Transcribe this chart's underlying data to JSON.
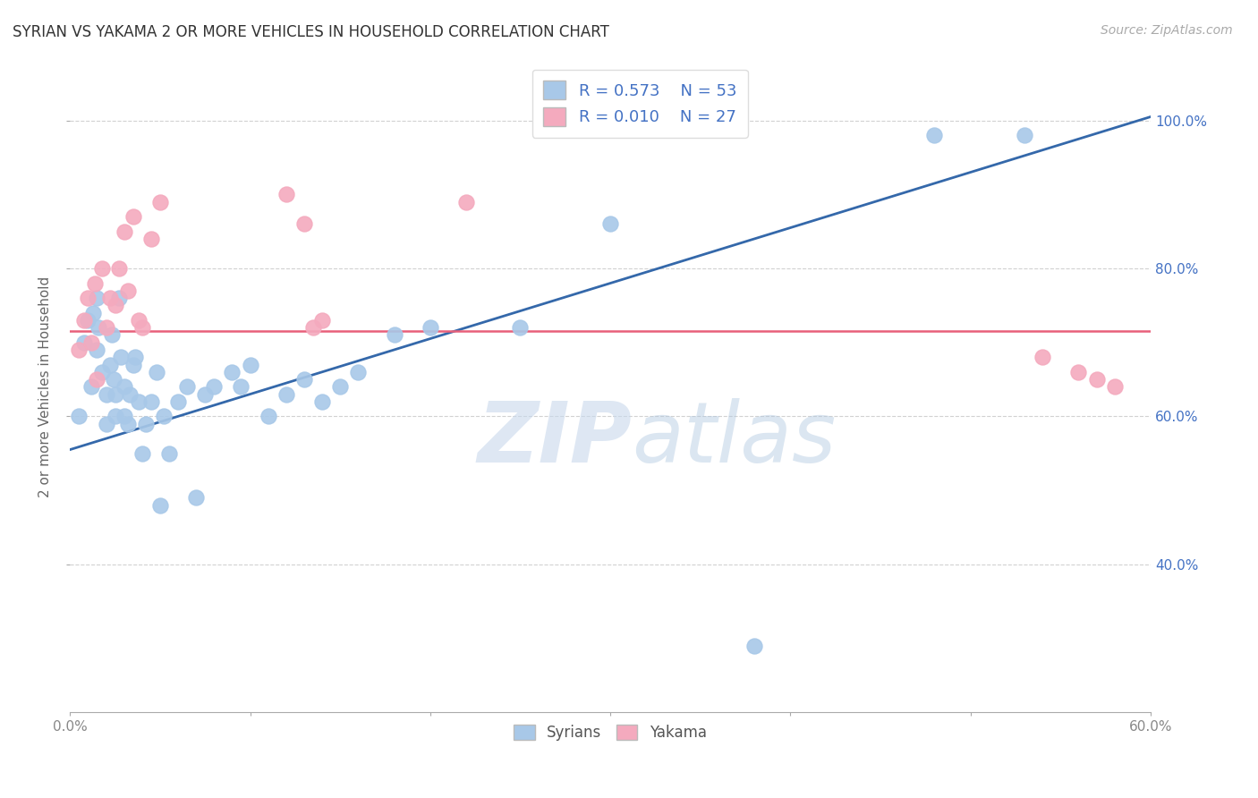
{
  "title": "SYRIAN VS YAKAMA 2 OR MORE VEHICLES IN HOUSEHOLD CORRELATION CHART",
  "source": "Source: ZipAtlas.com",
  "ylabel": "2 or more Vehicles in Household",
  "xmin": 0.0,
  "xmax": 0.6,
  "ymin": 0.2,
  "ymax": 1.08,
  "yticks": [
    0.4,
    0.6,
    0.8,
    1.0
  ],
  "ytick_labels": [
    "40.0%",
    "60.0%",
    "80.0%",
    "100.0%"
  ],
  "xtick_positions": [
    0.0,
    0.1,
    0.2,
    0.3,
    0.4,
    0.5,
    0.6
  ],
  "xtick_labels": [
    "0.0%",
    "",
    "",
    "",
    "",
    "",
    "60.0%"
  ],
  "legend_labels": [
    "Syrians",
    "Yakama"
  ],
  "blue_color": "#A8C8E8",
  "pink_color": "#F4AABE",
  "blue_line_color": "#3468AA",
  "pink_line_color": "#E8607A",
  "R_syrian": 0.573,
  "N_syrian": 53,
  "R_yakama": 0.01,
  "N_yakama": 27,
  "syrian_x": [
    0.005,
    0.008,
    0.01,
    0.012,
    0.013,
    0.015,
    0.015,
    0.016,
    0.018,
    0.02,
    0.02,
    0.022,
    0.023,
    0.024,
    0.025,
    0.025,
    0.027,
    0.028,
    0.03,
    0.03,
    0.032,
    0.033,
    0.035,
    0.036,
    0.038,
    0.04,
    0.042,
    0.045,
    0.048,
    0.05,
    0.052,
    0.055,
    0.06,
    0.065,
    0.07,
    0.075,
    0.08,
    0.09,
    0.095,
    0.1,
    0.11,
    0.12,
    0.13,
    0.14,
    0.15,
    0.16,
    0.18,
    0.2,
    0.25,
    0.3,
    0.38,
    0.48,
    0.53
  ],
  "syrian_y": [
    0.6,
    0.7,
    0.73,
    0.64,
    0.74,
    0.69,
    0.76,
    0.72,
    0.66,
    0.59,
    0.63,
    0.67,
    0.71,
    0.65,
    0.6,
    0.63,
    0.76,
    0.68,
    0.6,
    0.64,
    0.59,
    0.63,
    0.67,
    0.68,
    0.62,
    0.55,
    0.59,
    0.62,
    0.66,
    0.48,
    0.6,
    0.55,
    0.62,
    0.64,
    0.49,
    0.63,
    0.64,
    0.66,
    0.64,
    0.67,
    0.6,
    0.63,
    0.65,
    0.62,
    0.64,
    0.66,
    0.71,
    0.72,
    0.72,
    0.86,
    0.29,
    0.98,
    0.98
  ],
  "yakama_x": [
    0.005,
    0.008,
    0.01,
    0.012,
    0.014,
    0.015,
    0.018,
    0.02,
    0.022,
    0.025,
    0.027,
    0.03,
    0.032,
    0.035,
    0.038,
    0.04,
    0.045,
    0.05,
    0.12,
    0.13,
    0.135,
    0.14,
    0.22,
    0.54,
    0.56,
    0.57,
    0.58
  ],
  "yakama_y": [
    0.69,
    0.73,
    0.76,
    0.7,
    0.78,
    0.65,
    0.8,
    0.72,
    0.76,
    0.75,
    0.8,
    0.85,
    0.77,
    0.87,
    0.73,
    0.72,
    0.84,
    0.89,
    0.9,
    0.86,
    0.72,
    0.73,
    0.89,
    0.68,
    0.66,
    0.65,
    0.64
  ],
  "watermark_zip": "ZIP",
  "watermark_atlas": "atlas",
  "background_color": "#FFFFFF",
  "grid_color": "#CCCCCC",
  "axis_color": "#AAAAAA",
  "tick_label_color_blue": "#4472C4",
  "tick_label_color_gray": "#888888"
}
